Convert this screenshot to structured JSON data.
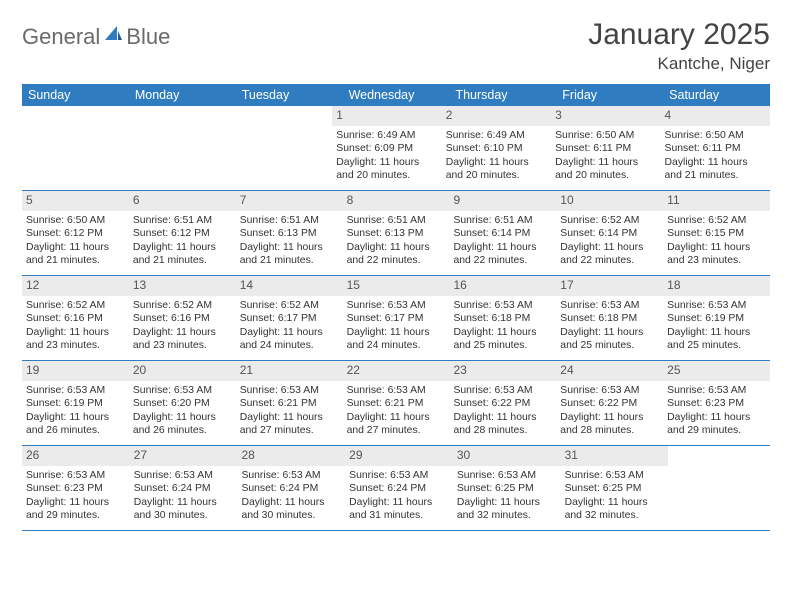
{
  "logo": {
    "word1": "General",
    "word2": "Blue"
  },
  "title": "January 2025",
  "location": "Kantche, Niger",
  "header_bg": "#2f7dc0",
  "daynum_bg": "#ebebeb",
  "weekdays": [
    "Sunday",
    "Monday",
    "Tuesday",
    "Wednesday",
    "Thursday",
    "Friday",
    "Saturday"
  ],
  "weeks": [
    [
      {
        "blank": true
      },
      {
        "blank": true
      },
      {
        "blank": true
      },
      {
        "n": "1",
        "sr": "6:49 AM",
        "ss": "6:09 PM",
        "dl": "11 hours and 20 minutes."
      },
      {
        "n": "2",
        "sr": "6:49 AM",
        "ss": "6:10 PM",
        "dl": "11 hours and 20 minutes."
      },
      {
        "n": "3",
        "sr": "6:50 AM",
        "ss": "6:11 PM",
        "dl": "11 hours and 20 minutes."
      },
      {
        "n": "4",
        "sr": "6:50 AM",
        "ss": "6:11 PM",
        "dl": "11 hours and 21 minutes."
      }
    ],
    [
      {
        "n": "5",
        "sr": "6:50 AM",
        "ss": "6:12 PM",
        "dl": "11 hours and 21 minutes."
      },
      {
        "n": "6",
        "sr": "6:51 AM",
        "ss": "6:12 PM",
        "dl": "11 hours and 21 minutes."
      },
      {
        "n": "7",
        "sr": "6:51 AM",
        "ss": "6:13 PM",
        "dl": "11 hours and 21 minutes."
      },
      {
        "n": "8",
        "sr": "6:51 AM",
        "ss": "6:13 PM",
        "dl": "11 hours and 22 minutes."
      },
      {
        "n": "9",
        "sr": "6:51 AM",
        "ss": "6:14 PM",
        "dl": "11 hours and 22 minutes."
      },
      {
        "n": "10",
        "sr": "6:52 AM",
        "ss": "6:14 PM",
        "dl": "11 hours and 22 minutes."
      },
      {
        "n": "11",
        "sr": "6:52 AM",
        "ss": "6:15 PM",
        "dl": "11 hours and 23 minutes."
      }
    ],
    [
      {
        "n": "12",
        "sr": "6:52 AM",
        "ss": "6:16 PM",
        "dl": "11 hours and 23 minutes."
      },
      {
        "n": "13",
        "sr": "6:52 AM",
        "ss": "6:16 PM",
        "dl": "11 hours and 23 minutes."
      },
      {
        "n": "14",
        "sr": "6:52 AM",
        "ss": "6:17 PM",
        "dl": "11 hours and 24 minutes."
      },
      {
        "n": "15",
        "sr": "6:53 AM",
        "ss": "6:17 PM",
        "dl": "11 hours and 24 minutes."
      },
      {
        "n": "16",
        "sr": "6:53 AM",
        "ss": "6:18 PM",
        "dl": "11 hours and 25 minutes."
      },
      {
        "n": "17",
        "sr": "6:53 AM",
        "ss": "6:18 PM",
        "dl": "11 hours and 25 minutes."
      },
      {
        "n": "18",
        "sr": "6:53 AM",
        "ss": "6:19 PM",
        "dl": "11 hours and 25 minutes."
      }
    ],
    [
      {
        "n": "19",
        "sr": "6:53 AM",
        "ss": "6:19 PM",
        "dl": "11 hours and 26 minutes."
      },
      {
        "n": "20",
        "sr": "6:53 AM",
        "ss": "6:20 PM",
        "dl": "11 hours and 26 minutes."
      },
      {
        "n": "21",
        "sr": "6:53 AM",
        "ss": "6:21 PM",
        "dl": "11 hours and 27 minutes."
      },
      {
        "n": "22",
        "sr": "6:53 AM",
        "ss": "6:21 PM",
        "dl": "11 hours and 27 minutes."
      },
      {
        "n": "23",
        "sr": "6:53 AM",
        "ss": "6:22 PM",
        "dl": "11 hours and 28 minutes."
      },
      {
        "n": "24",
        "sr": "6:53 AM",
        "ss": "6:22 PM",
        "dl": "11 hours and 28 minutes."
      },
      {
        "n": "25",
        "sr": "6:53 AM",
        "ss": "6:23 PM",
        "dl": "11 hours and 29 minutes."
      }
    ],
    [
      {
        "n": "26",
        "sr": "6:53 AM",
        "ss": "6:23 PM",
        "dl": "11 hours and 29 minutes."
      },
      {
        "n": "27",
        "sr": "6:53 AM",
        "ss": "6:24 PM",
        "dl": "11 hours and 30 minutes."
      },
      {
        "n": "28",
        "sr": "6:53 AM",
        "ss": "6:24 PM",
        "dl": "11 hours and 30 minutes."
      },
      {
        "n": "29",
        "sr": "6:53 AM",
        "ss": "6:24 PM",
        "dl": "11 hours and 31 minutes."
      },
      {
        "n": "30",
        "sr": "6:53 AM",
        "ss": "6:25 PM",
        "dl": "11 hours and 32 minutes."
      },
      {
        "n": "31",
        "sr": "6:53 AM",
        "ss": "6:25 PM",
        "dl": "11 hours and 32 minutes."
      },
      {
        "blank": true
      }
    ]
  ],
  "labels": {
    "sunrise": "Sunrise:",
    "sunset": "Sunset:",
    "daylight": "Daylight:"
  }
}
